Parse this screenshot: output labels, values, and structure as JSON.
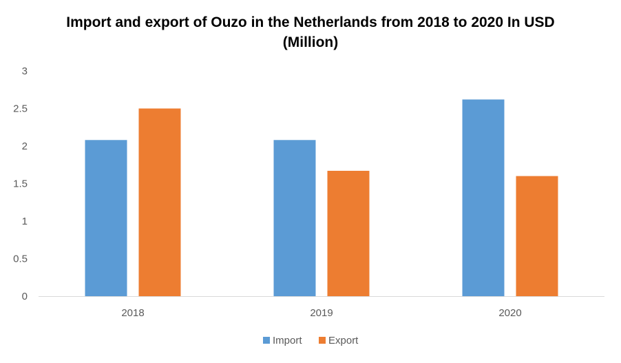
{
  "chart_data": {
    "type": "bar",
    "title": "Import and export of Ouzo in the Netherlands from 2018 to 2020 In USD (Million)",
    "categories": [
      "2018",
      "2019",
      "2020"
    ],
    "series": [
      {
        "name": "Import",
        "color": "#5B9BD5",
        "values": [
          2.08,
          2.08,
          2.62
        ]
      },
      {
        "name": "Export",
        "color": "#ED7D31",
        "values": [
          2.5,
          1.67,
          1.6
        ]
      }
    ],
    "ylim": [
      0,
      3
    ],
    "yticks": [
      "0",
      "0.5",
      "1",
      "1.5",
      "2",
      "2.5",
      "3"
    ],
    "grid": false,
    "legend_position": "bottom"
  }
}
